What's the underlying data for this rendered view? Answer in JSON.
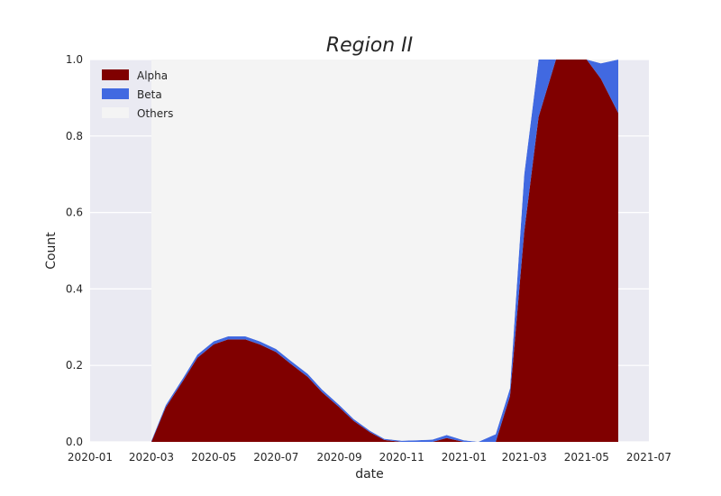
{
  "chart_data": {
    "type": "area",
    "title": "Region II",
    "xlabel": "date",
    "ylabel": "Count",
    "xlim": [
      "2020-01-01",
      "2021-07-01"
    ],
    "ylim": [
      0,
      1.0
    ],
    "x_ticks": [
      "2020-01",
      "2020-03",
      "2020-05",
      "2020-07",
      "2020-09",
      "2020-11",
      "2021-01",
      "2021-03",
      "2021-05",
      "2021-07"
    ],
    "y_ticks": [
      "0.0",
      "0.2",
      "0.4",
      "0.6",
      "0.8",
      "1.0"
    ],
    "grid": true,
    "legend_position": "top-left",
    "stacked": true,
    "x": [
      "2020-03-01",
      "2020-03-15",
      "2020-04-01",
      "2020-04-15",
      "2020-05-01",
      "2020-05-15",
      "2020-06-01",
      "2020-06-15",
      "2020-07-01",
      "2020-07-15",
      "2020-08-01",
      "2020-08-15",
      "2020-09-01",
      "2020-09-15",
      "2020-10-01",
      "2020-10-15",
      "2020-11-01",
      "2020-11-15",
      "2020-12-01",
      "2020-12-15",
      "2021-01-01",
      "2021-01-15",
      "2021-02-01",
      "2021-02-15",
      "2021-03-01",
      "2021-03-15",
      "2021-04-01",
      "2021-04-15",
      "2021-05-01",
      "2021-05-15",
      "2021-06-01"
    ],
    "series": [
      {
        "name": "Alpha",
        "color": "#800000",
        "values": [
          0.0,
          0.09,
          0.16,
          0.22,
          0.255,
          0.268,
          0.268,
          0.255,
          0.235,
          0.205,
          0.17,
          0.13,
          0.09,
          0.055,
          0.025,
          0.005,
          0.0,
          0.0,
          0.0,
          0.01,
          0.0,
          0.0,
          0.0,
          0.12,
          0.55,
          0.85,
          1.0,
          1.0,
          1.0,
          0.95,
          0.86
        ]
      },
      {
        "name": "Beta",
        "color": "#4169e1",
        "values": [
          0.003,
          0.006,
          0.007,
          0.008,
          0.008,
          0.008,
          0.008,
          0.008,
          0.008,
          0.008,
          0.008,
          0.007,
          0.006,
          0.005,
          0.004,
          0.003,
          0.003,
          0.004,
          0.006,
          0.008,
          0.004,
          0.0,
          0.02,
          0.02,
          0.15,
          0.15,
          0.0,
          0.0,
          0.0,
          0.04,
          0.14
        ]
      },
      {
        "name": "Others",
        "color": "#f4f4f4",
        "values": [
          0.997,
          0.904,
          0.833,
          0.772,
          0.737,
          0.724,
          0.724,
          0.737,
          0.757,
          0.787,
          0.822,
          0.863,
          0.904,
          0.94,
          0.971,
          0.992,
          0.997,
          0.996,
          0.994,
          0.982,
          0.996,
          1.0,
          0.98,
          0.86,
          0.3,
          0.0,
          0.0,
          0.0,
          0.0,
          0.01,
          0.0
        ]
      }
    ]
  }
}
